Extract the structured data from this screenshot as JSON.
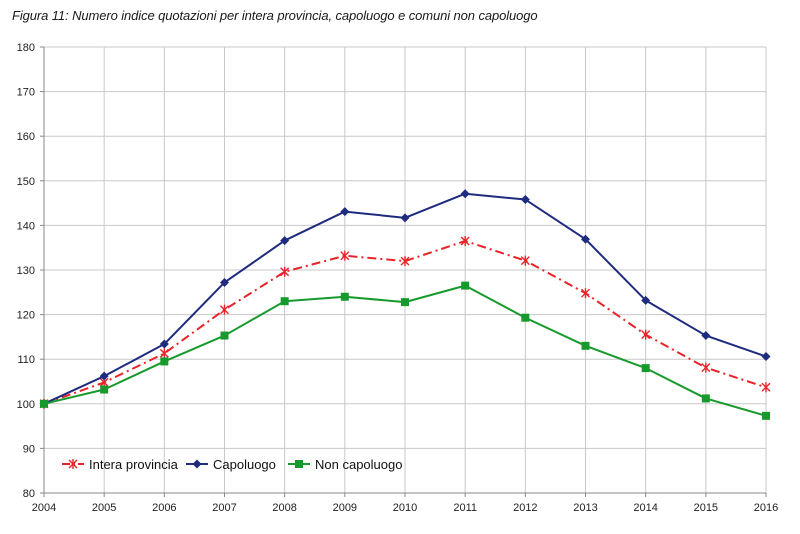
{
  "chart_data": {
    "type": "line",
    "title": "Figura 11: Numero indice quotazioni per intera provincia, capoluogo e comuni non capoluogo",
    "xlabel": "",
    "ylabel": "",
    "x": [
      "2004",
      "2005",
      "2006",
      "2007",
      "2008",
      "2009",
      "2010",
      "2011",
      "2012",
      "2013",
      "2014",
      "2015",
      "2016"
    ],
    "ylim": [
      80,
      180
    ],
    "yticks": [
      80,
      90,
      100,
      110,
      120,
      130,
      140,
      150,
      160,
      170,
      180
    ],
    "grid": true,
    "legend_position": "bottom-left",
    "series": [
      {
        "name": "Intera provincia",
        "color": "#e8232a",
        "marker": "star",
        "dash": "dash-dot",
        "values": [
          100,
          104.8,
          111.3,
          121.1,
          129.6,
          133.2,
          132.0,
          136.5,
          132.1,
          124.8,
          115.5,
          108.1,
          103.7
        ]
      },
      {
        "name": "Capoluogo",
        "color": "#1f2b7e",
        "marker": "diamond",
        "dash": "solid",
        "values": [
          100,
          106.2,
          113.4,
          127.2,
          136.6,
          143.1,
          141.7,
          147.1,
          145.8,
          136.9,
          123.2,
          115.3,
          110.6
        ]
      },
      {
        "name": "Non capoluogo",
        "color": "#179a2c",
        "marker": "square",
        "dash": "solid",
        "values": [
          100,
          103.2,
          109.5,
          115.3,
          123.0,
          124.0,
          122.8,
          126.5,
          119.3,
          113.0,
          108.0,
          101.2,
          97.3
        ]
      }
    ]
  }
}
